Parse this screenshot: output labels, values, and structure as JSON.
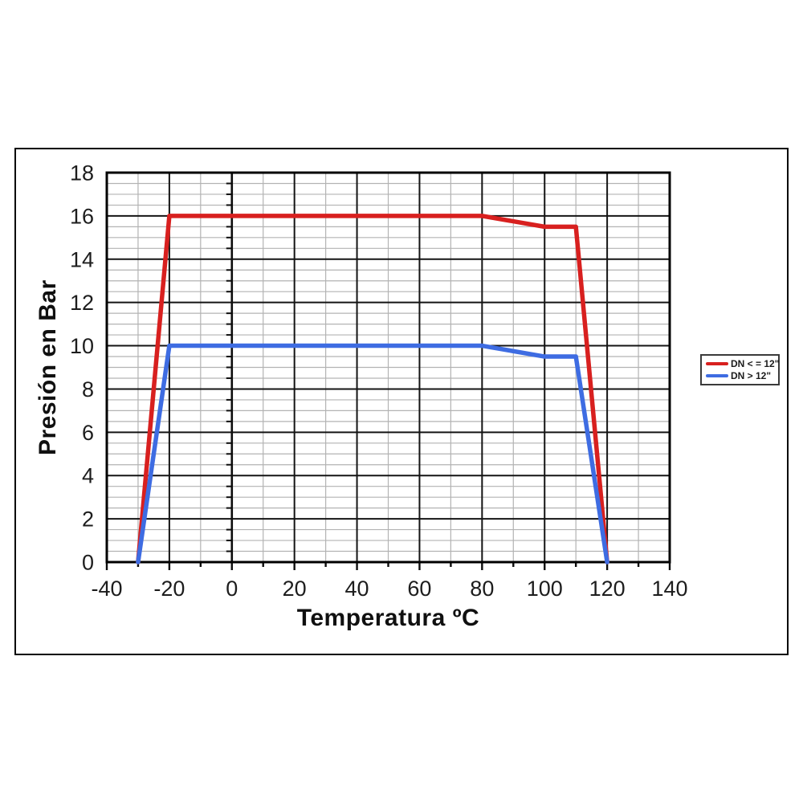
{
  "figure": {
    "background_color": "#ffffff",
    "frame_border_color": "#000000"
  },
  "chart_data": {
    "type": "line",
    "title": "",
    "xlabel": "Temperatura ºC",
    "ylabel": "Presión en Bar",
    "xlim": [
      -40,
      140
    ],
    "ylim": [
      0,
      18
    ],
    "x_major_step": 20,
    "x_minor_step": 10,
    "y_major_step": 2,
    "y_minor_step": 0.5,
    "x_ticks": [
      -40,
      -20,
      0,
      20,
      40,
      60,
      80,
      100,
      120,
      140
    ],
    "y_ticks": [
      0,
      2,
      4,
      6,
      8,
      10,
      12,
      14,
      16,
      18
    ],
    "grid": {
      "show_major": true,
      "show_minor": true,
      "major_color": "#141414",
      "minor_color": "#b3b3b3"
    },
    "axis_line_at_x_zero": true,
    "legend_position": "right-outside",
    "series": [
      {
        "name": "DN < = 12\"",
        "color": "#d8201f",
        "points": [
          [
            -30,
            0
          ],
          [
            -20,
            16
          ],
          [
            80,
            16
          ],
          [
            100,
            15.5
          ],
          [
            110,
            15.5
          ],
          [
            120,
            0
          ]
        ]
      },
      {
        "name": "DN > 12\"",
        "color": "#3e6ce2",
        "points": [
          [
            -30,
            0
          ],
          [
            -20,
            10
          ],
          [
            80,
            10
          ],
          [
            100,
            9.5
          ],
          [
            110,
            9.5
          ],
          [
            120,
            0
          ]
        ]
      }
    ]
  }
}
